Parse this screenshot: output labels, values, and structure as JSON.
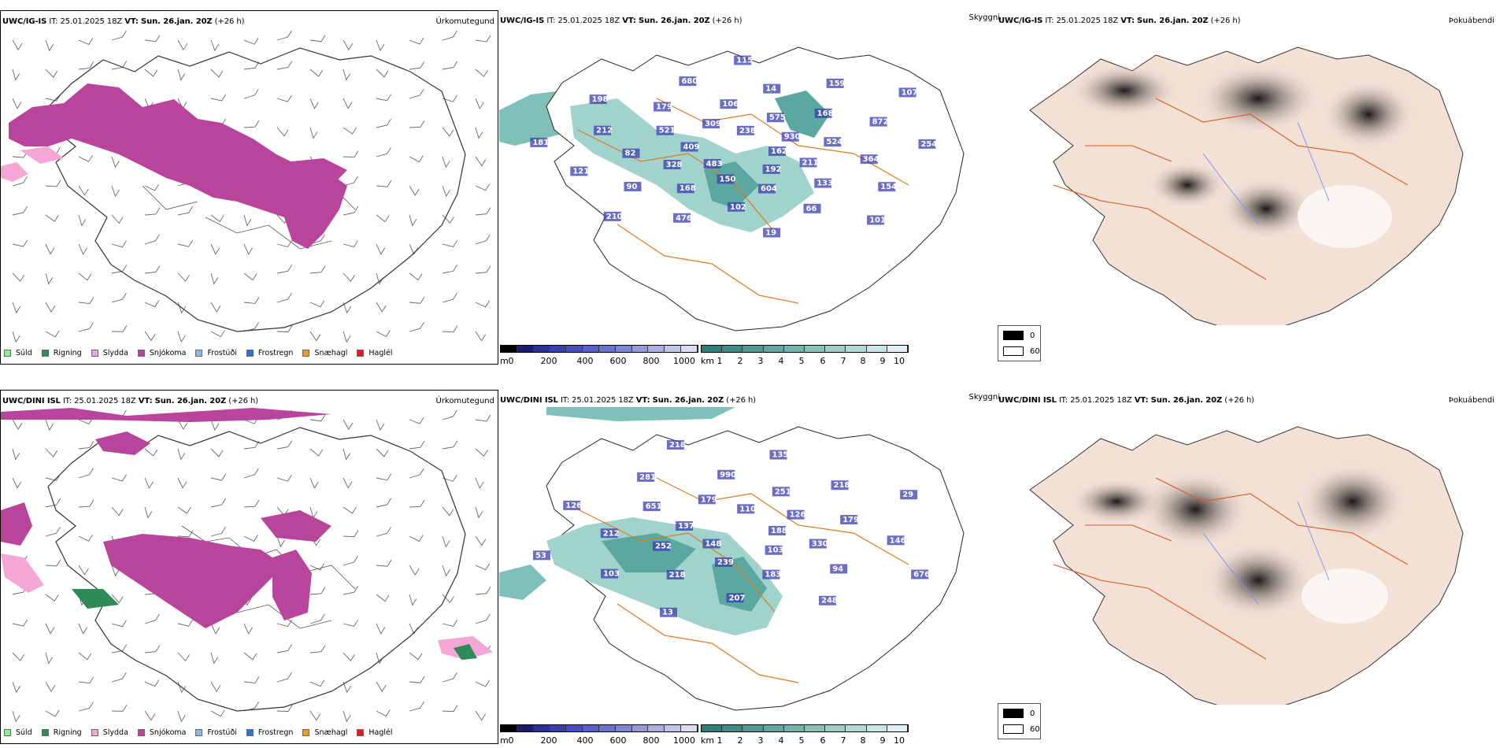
{
  "rows": [
    {
      "model": "UWC/IG-IS",
      "it_label": "IT:",
      "it_value": "25.01.2025 18Z",
      "vt_label": "VT:",
      "vt_value": "Sun. 26.jan. 20Z",
      "lead": "(+26 h)",
      "precip_title": "Úrkomutegund",
      "ceiling_title": "Skyggni",
      "fog_title": "Þokuábendi",
      "cloud_labels": [
        "162",
        "483",
        "238",
        "192",
        "409",
        "930",
        "150",
        "309",
        "211",
        "328",
        "575",
        "604",
        "521",
        "524",
        "168",
        "106",
        "133",
        "82",
        "168",
        "102",
        "179",
        "364",
        "90",
        "14",
        "66",
        "212",
        "872",
        "476",
        "680",
        "154",
        "121",
        "159",
        "19",
        "198",
        "254",
        "210",
        "115",
        "101",
        "181",
        "107"
      ],
      "vis_labels": []
    },
    {
      "model": "UWC/DINI ISL",
      "it_label": "IT:",
      "it_value": "25.01.2025 18Z",
      "vt_label": "VT:",
      "vt_value": "Sun. 26.jan. 20Z",
      "lead": "(+26 h)",
      "precip_title": "Úrkomutegund",
      "ceiling_title": "Skyggni",
      "fog_title": "Þokuábendi",
      "cloud_labels": [
        "188",
        "148",
        "110",
        "103",
        "137",
        "126",
        "239",
        "179",
        "330",
        "252",
        "251",
        "183",
        "651",
        "179",
        "218",
        "990",
        "94",
        "212",
        "218",
        "207",
        "281",
        "146",
        "103",
        "135",
        "248",
        "126",
        "29",
        "13",
        "218",
        "676",
        "53"
      ],
      "vis_labels": []
    }
  ],
  "precip_legend": [
    {
      "label": "Súld",
      "color": "#90ee90"
    },
    {
      "label": "Rigning",
      "color": "#2e8b57"
    },
    {
      "label": "Slydda",
      "color": "#f4a6d7"
    },
    {
      "label": "Snjókoma",
      "color": "#b9449c"
    },
    {
      "label": "Frostúði",
      "color": "#87b8f0"
    },
    {
      "label": "Frostregn",
      "color": "#2f6fd6"
    },
    {
      "label": "Snæhagl",
      "color": "#f39c12"
    },
    {
      "label": "Haglél",
      "color": "#e31a1c"
    }
  ],
  "ceiling_bar": {
    "unit": "m",
    "ticks": [
      "0",
      "200",
      "400",
      "600",
      "800",
      "1000"
    ],
    "colors": [
      "#000000",
      "#1a1a6e",
      "#2b2f96",
      "#3a3fb0",
      "#4a4fc0",
      "#5a61c8",
      "#6b72cc",
      "#7f86d1",
      "#959bd8",
      "#aab0df",
      "#c2c6e8",
      "#d8dbf2"
    ]
  },
  "visibility_bar": {
    "unit": "km",
    "ticks": [
      "1",
      "2",
      "3",
      "4",
      "5",
      "6",
      "7",
      "8",
      "9",
      "10"
    ],
    "colors": [
      "#2f7f78",
      "#3f8c85",
      "#509992",
      "#62a69f",
      "#75b3ad",
      "#89c0bb",
      "#9ecdc8",
      "#b4dad6",
      "#cae6e3",
      "#e0f2f0"
    ]
  },
  "fog_legend": [
    {
      "label": "0",
      "color": "#000000"
    },
    {
      "label": "60",
      "color": "#ffffff"
    }
  ],
  "colors": {
    "snow": "#b9449c",
    "sleet": "#f4a6d7",
    "rain": "#2e8b57",
    "teal": "#3f9a90",
    "teal_light": "#9fd3cc",
    "road": "#e07a1f",
    "fog_land": "#f3e1d6",
    "fog_dark": "#2a2a2a",
    "river": "#7d8ff0"
  }
}
